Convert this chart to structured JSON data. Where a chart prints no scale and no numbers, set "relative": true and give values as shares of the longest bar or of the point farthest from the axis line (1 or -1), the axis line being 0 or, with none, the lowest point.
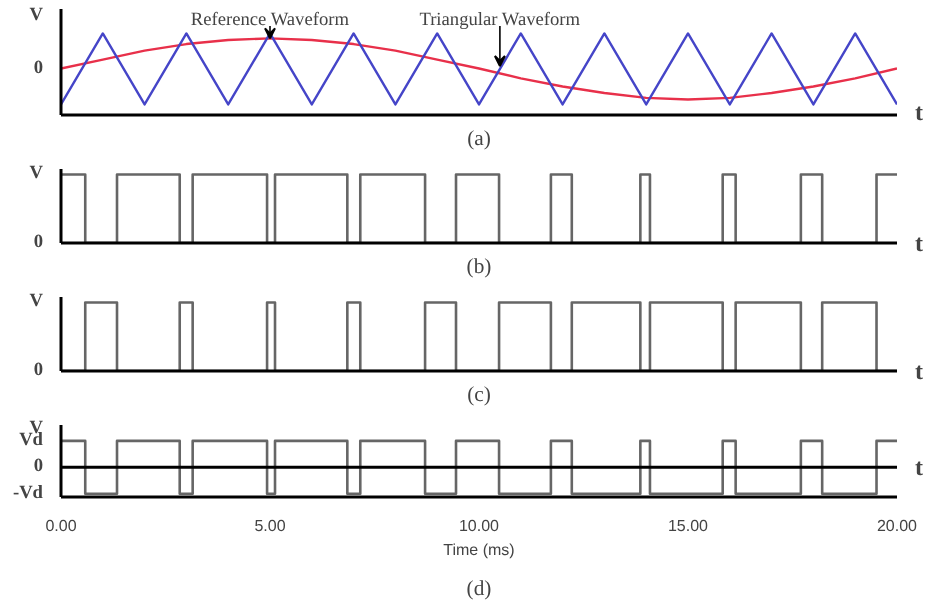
{
  "chart_data": [
    {
      "type": "line",
      "title": "(a)",
      "relative": true,
      "x": [
        0,
        1,
        2,
        3,
        4,
        5,
        6,
        7,
        8,
        9,
        10,
        11,
        12,
        13,
        14,
        15,
        16,
        17,
        18,
        19,
        20
      ],
      "xlim": [
        0,
        20
      ],
      "series": [
        {
          "color": "#e8304a",
          "values": [
            0.57,
            0.68,
            0.79,
            0.87,
            0.92,
            0.94,
            0.92,
            0.87,
            0.79,
            0.68,
            0.57,
            0.45,
            0.35,
            0.27,
            0.21,
            0.19,
            0.21,
            0.27,
            0.35,
            0.45,
            0.57
          ]
        },
        {
          "color": "#4545c8",
          "values": [
            0.13,
            1,
            0.13,
            1,
            0.13,
            1,
            0.13,
            1,
            0.13,
            1,
            0.13,
            1,
            0.13,
            1,
            0.13,
            1,
            0.13,
            1,
            0.13,
            1,
            0.13
          ]
        }
      ],
      "annotations": [
        "V",
        "0",
        {
          "text": "Reference Waveform",
          "x": 5,
          "y": 0.94
        },
        {
          "text": "Triangular Waveform",
          "x": 10.5,
          "y": 0.6
        },
        "t"
      ]
    },
    {
      "type": "step",
      "title": "(b)",
      "relative": true,
      "x": [
        0,
        0.58,
        1.34,
        2.84,
        3.15,
        4.93,
        5.12,
        6.85,
        7.16,
        8.71,
        9.45,
        10.48,
        11.72,
        12.22,
        13.86,
        14.09,
        15.83,
        16.14,
        17.7,
        18.21,
        19.51,
        20
      ],
      "xlim": [
        0,
        20
      ],
      "series": [
        {
          "color": "#666666",
          "values": [
            1,
            0,
            1,
            0,
            1,
            0,
            1,
            0,
            1,
            0,
            1,
            0,
            1,
            0,
            1,
            0,
            1,
            0,
            1,
            0,
            1,
            1
          ]
        }
      ],
      "annotations": [
        "V",
        "0",
        "t"
      ]
    },
    {
      "type": "step",
      "title": "(c)",
      "relative": true,
      "x": [
        0,
        0.58,
        1.34,
        2.84,
        3.15,
        4.93,
        5.12,
        6.85,
        7.16,
        8.71,
        9.45,
        10.48,
        11.72,
        12.22,
        13.86,
        14.09,
        15.83,
        16.14,
        17.7,
        18.21,
        19.51,
        20
      ],
      "xlim": [
        0,
        20
      ],
      "series": [
        {
          "color": "#666666",
          "values": [
            0,
            1,
            0,
            1,
            0,
            1,
            0,
            1,
            0,
            1,
            0,
            1,
            0,
            1,
            0,
            1,
            0,
            1,
            0,
            1,
            0,
            0
          ]
        }
      ],
      "annotations": [
        "V",
        "0",
        "t"
      ]
    },
    {
      "type": "step",
      "title": "(d)",
      "xlabel": "Time (ms)",
      "relative": true,
      "x": [
        0,
        0.58,
        1.34,
        2.84,
        3.15,
        4.93,
        5.12,
        6.85,
        7.16,
        8.71,
        9.45,
        10.48,
        11.72,
        12.22,
        13.86,
        14.09,
        15.83,
        16.14,
        17.7,
        18.21,
        19.51,
        20
      ],
      "xlim": [
        0,
        20
      ],
      "xticks": [
        {
          "value": 0,
          "label": "0.00"
        },
        {
          "value": 5,
          "label": "5.00"
        },
        {
          "value": 10,
          "label": "10.00"
        },
        {
          "value": 15,
          "label": "15.00"
        },
        {
          "value": 20,
          "label": "20.00"
        }
      ],
      "series": [
        {
          "color": "#666666",
          "values": [
            1,
            -1,
            1,
            -1,
            1,
            -1,
            1,
            -1,
            1,
            -1,
            1,
            -1,
            1,
            -1,
            1,
            -1,
            1,
            -1,
            1,
            -1,
            1,
            1
          ]
        }
      ],
      "ref_lines": [
        {
          "axis": "y",
          "value": 0,
          "color": "#000000"
        }
      ],
      "annotations": [
        "V",
        "Vd",
        "0",
        "-Vd",
        "t"
      ]
    }
  ]
}
